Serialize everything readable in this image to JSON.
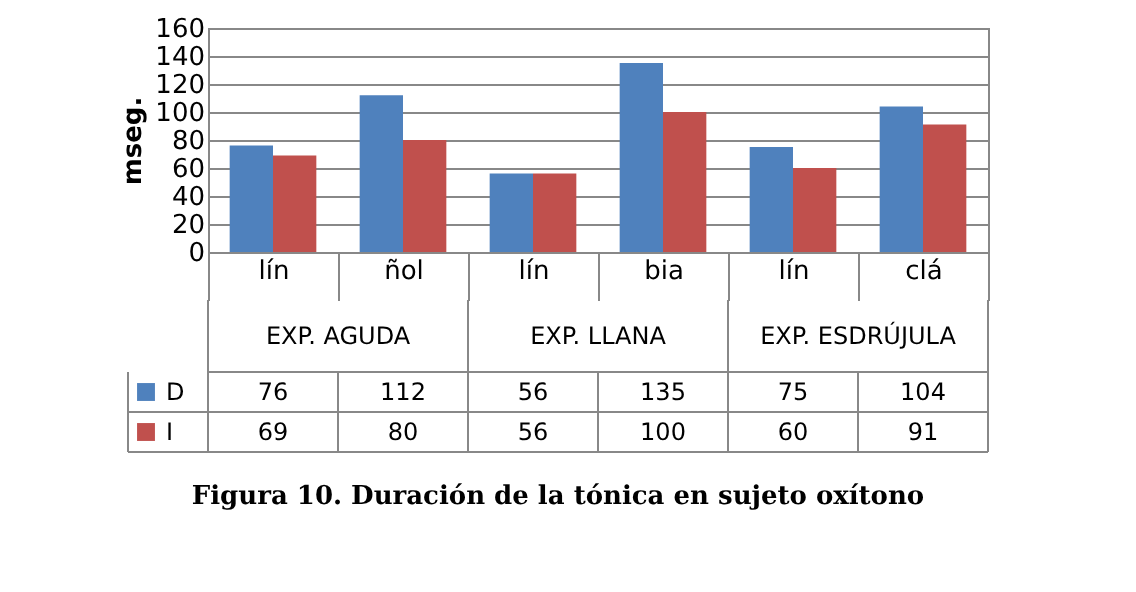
{
  "chart_data": {
    "type": "bar",
    "title": "Figura 10. Duración de la tónica en sujeto oxítono",
    "ylabel": "mseg.",
    "categories": [
      "lín",
      "ñol",
      "lín",
      "bia",
      "lín",
      "clá"
    ],
    "annotations": [
      "EXP. AGUDA",
      "EXP. LLANA",
      "EXP. ESDRÚJULA"
    ],
    "series": [
      {
        "name": "D",
        "color": "#4f81bd",
        "values": [
          76,
          112,
          56,
          135,
          75,
          104
        ]
      },
      {
        "name": "I",
        "color": "#c0504d",
        "values": [
          69,
          80,
          56,
          100,
          60,
          91
        ]
      }
    ],
    "ylim": [
      0,
      160
    ],
    "yticks": [
      0,
      20,
      40,
      60,
      80,
      100,
      120,
      140,
      160
    ],
    "grid": "y",
    "legend": "bottom",
    "data_labels": true
  }
}
